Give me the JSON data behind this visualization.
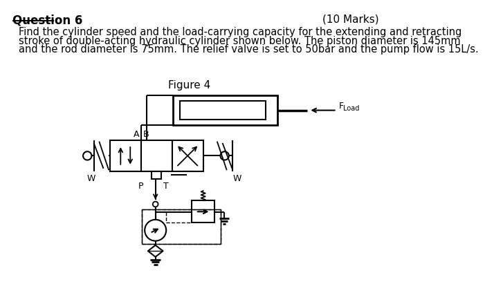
{
  "title": "Question 6",
  "marks": "(10 Marks)",
  "line1": "Find the cylinder speed and the load-carrying capacity for the extending and retracting",
  "line2": "stroke of double-acting hydraulic cylinder shown below. The piston diameter is 145mm",
  "line3": "and the rod diameter is 75mm. The relief valve is set to 50bar and the pump flow is 15L/s.",
  "figure_label": "Figure 4",
  "label_A": "A",
  "label_B": "B",
  "label_P": "P",
  "label_T": "T",
  "label_W": "W",
  "label_F": "F",
  "label_Load": "Load",
  "bg_color": "#ffffff",
  "line_color": "#000000"
}
